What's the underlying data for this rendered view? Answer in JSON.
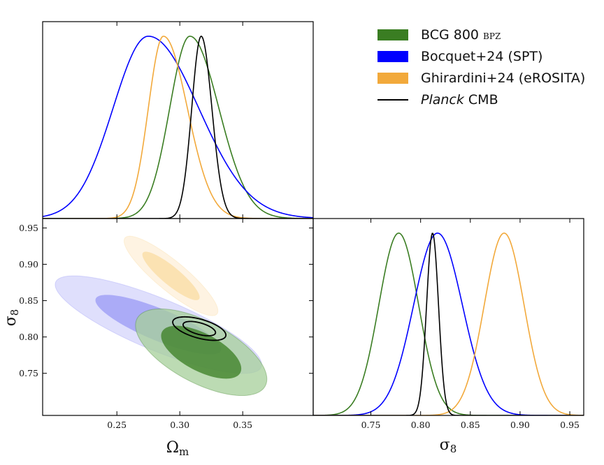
{
  "chart_data": [
    {
      "type": "line",
      "panel": "top-left",
      "title": "",
      "xlabel": "",
      "ylabel": "",
      "description": "1D marginalized posterior of Omega_m (normalized to peak = 1)",
      "xlim": [
        0.191,
        0.406
      ],
      "ylim": [
        0,
        1.08
      ],
      "xticks": [
        0.25,
        0.3,
        0.35
      ],
      "series": [
        {
          "name": "BCG 800 BPZ",
          "color": "#3a7d22",
          "peak": 0.308,
          "sigma_lo": 0.016,
          "sigma_hi": 0.023
        },
        {
          "name": "Bocquet+24 (SPT)",
          "color": "#0000ff",
          "peak": 0.275,
          "sigma_lo": 0.028,
          "sigma_hi": 0.04
        },
        {
          "name": "Ghirardini+24 (eROSITA)",
          "color": "#f2a93b",
          "peak": 0.287,
          "sigma_lo": 0.012,
          "sigma_hi": 0.019
        },
        {
          "name": "Planck CMB",
          "color": "#000000",
          "peak": 0.317,
          "sigma_lo": 0.0075,
          "sigma_hi": 0.0085
        }
      ]
    },
    {
      "type": "scatter",
      "panel": "bottom-left",
      "description": "2D posterior contours (68% and 95%) in Omega_m - sigma_8 plane",
      "xlabel": "Ωm",
      "ylabel": "σ8",
      "xlim": [
        0.191,
        0.406
      ],
      "ylim": [
        0.692,
        0.963
      ],
      "xticks": [
        0.25,
        0.3,
        0.35
      ],
      "yticks": [
        0.75,
        0.8,
        0.85,
        0.9,
        0.95
      ],
      "xtick_labels": [
        "0.25",
        "0.30",
        "0.35"
      ],
      "ytick_labels": [
        "0.75",
        "0.80",
        "0.85",
        "0.90",
        "0.95"
      ],
      "contours": [
        {
          "name": "Bocquet+24 (SPT)",
          "style": "filled",
          "inner_color": "#9a9af5",
          "outer_color": "#d4d4fb",
          "center": [
            0.283,
            0.817
          ],
          "sigma_x": 0.033,
          "sigma_y": 0.027,
          "rho": -0.82
        },
        {
          "name": "Ghirardini+24 (eROSITA)",
          "style": "filled",
          "inner_color": "#f9dca2",
          "outer_color": "#fdefd8",
          "center": [
            0.293,
            0.884
          ],
          "sigma_x": 0.015,
          "sigma_y": 0.022,
          "rho": -0.88
        },
        {
          "name": "BCG 800 BPZ",
          "style": "filled",
          "inner_color": "#3a7d22",
          "outer_color": "#a6cf99",
          "center": [
            0.317,
            0.779
          ],
          "sigma_x": 0.021,
          "sigma_y": 0.024,
          "rho": -0.62
        },
        {
          "name": "Planck CMB",
          "style": "line",
          "line_color": "#000000",
          "center": [
            0.3155,
            0.8115
          ],
          "sigma_x": 0.0085,
          "sigma_y": 0.0065,
          "rho": -0.55
        }
      ]
    },
    {
      "type": "line",
      "panel": "bottom-right",
      "description": "1D marginalized posterior of sigma_8 (normalized to peak = 1)",
      "xlabel": "σ8",
      "ylabel": "",
      "xlim": [
        0.692,
        0.964
      ],
      "ylim": [
        0,
        1.08
      ],
      "xticks": [
        0.75,
        0.8,
        0.85,
        0.9,
        0.95
      ],
      "xtick_labels": [
        "0.75",
        "0.80",
        "0.85",
        "0.90",
        "0.95"
      ],
      "series": [
        {
          "name": "BCG 800 BPZ",
          "color": "#3a7d22",
          "peak": 0.778,
          "sigma_lo": 0.02,
          "sigma_hi": 0.02
        },
        {
          "name": "Bocquet+24 (SPT)",
          "color": "#0000ff",
          "peak": 0.817,
          "sigma_lo": 0.024,
          "sigma_hi": 0.025
        },
        {
          "name": "Ghirardini+24 (eROSITA)",
          "color": "#f2a93b",
          "peak": 0.884,
          "sigma_lo": 0.02,
          "sigma_hi": 0.02
        },
        {
          "name": "Planck CMB",
          "color": "#000000",
          "peak": 0.812,
          "sigma_lo": 0.006,
          "sigma_hi": 0.006
        }
      ]
    }
  ],
  "legend": {
    "placement": "top-right",
    "items": [
      {
        "label_main": "BCG 800 ",
        "label_sc": "bpz",
        "type": "patch",
        "color": "#3a7d22"
      },
      {
        "label_main": "Bocquet+24 (SPT)",
        "type": "patch",
        "color": "#0000ff"
      },
      {
        "label_main": "Ghirardini+24 (eROSITA)",
        "type": "patch",
        "color": "#f2a93b"
      },
      {
        "label_italic": "Planck",
        "label_main": " CMB",
        "type": "line",
        "color": "#000000"
      }
    ]
  }
}
